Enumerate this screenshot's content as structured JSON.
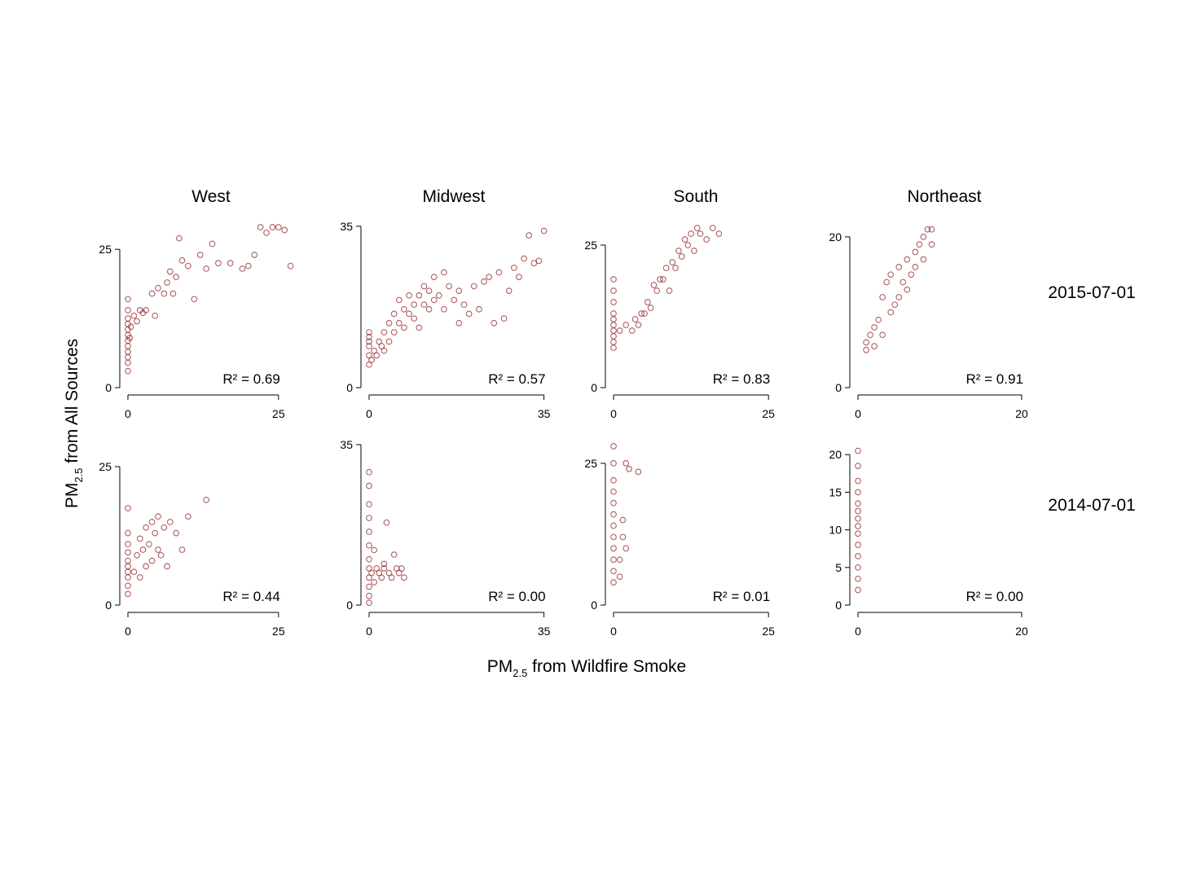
{
  "figure": {
    "columns": [
      "West",
      "Midwest",
      "South",
      "Northeast"
    ],
    "rows": [
      "2015-07-01",
      "2014-07-01"
    ],
    "x_label": [
      "PM",
      "2.5",
      " from Wildfire Smoke"
    ],
    "y_label": [
      "PM",
      "2.5",
      " from All Sources"
    ]
  },
  "chart_data": [
    {
      "type": "scatter",
      "color": "#8b1a1a",
      "annotation": "R² = 0.69",
      "x": [
        0,
        0,
        0,
        0,
        0,
        0,
        0,
        0,
        0,
        0,
        0,
        0,
        0.3,
        0.5,
        1,
        1.5,
        2,
        2.5,
        3,
        4,
        4.5,
        5,
        6,
        6.5,
        7,
        7.5,
        8,
        8.5,
        9,
        10,
        11,
        12,
        13,
        14,
        15,
        17,
        19,
        20,
        21,
        22,
        23,
        24,
        25,
        26,
        27
      ],
      "y": [
        3,
        4.5,
        5.5,
        6.5,
        7.5,
        8.5,
        9.5,
        10.5,
        11.5,
        12.5,
        14,
        16,
        9,
        11,
        13,
        12,
        14,
        13.5,
        14,
        17,
        13,
        18,
        17,
        19,
        21,
        17,
        20,
        27,
        23,
        22,
        16,
        24,
        21.5,
        26,
        22.5,
        22.5,
        21.5,
        22,
        24,
        29,
        28,
        29,
        29,
        28.5,
        22
      ],
      "xlim": [
        0,
        28
      ],
      "ylim": [
        0,
        29
      ],
      "xticks": [
        0,
        25
      ],
      "yticks": [
        0,
        25
      ]
    },
    {
      "type": "scatter",
      "color": "#8b1a1a",
      "annotation": "R² = 0.57",
      "x": [
        0,
        0,
        0,
        0,
        0,
        0,
        0.5,
        1,
        1.5,
        2,
        2.5,
        3,
        3,
        4,
        4,
        5,
        5,
        6,
        6,
        7,
        7,
        8,
        8,
        9,
        9,
        10,
        10,
        11,
        11,
        12,
        12,
        13,
        13,
        14,
        15,
        15,
        16,
        17,
        18,
        18,
        19,
        20,
        21,
        22,
        23,
        24,
        25,
        26,
        27,
        28,
        29,
        30,
        31,
        32,
        33,
        34,
        35
      ],
      "y": [
        5,
        7,
        9,
        10,
        11,
        12,
        6,
        8,
        7,
        10,
        9,
        8,
        12,
        10,
        14,
        12,
        16,
        14,
        19,
        13,
        17,
        16,
        20,
        18,
        15,
        20,
        13,
        18,
        22,
        21,
        17,
        19,
        24,
        20,
        17,
        25,
        22,
        19,
        14,
        21,
        18,
        16,
        22,
        17,
        23,
        24,
        14,
        25,
        15,
        21,
        26,
        24,
        28,
        33,
        27,
        27.5,
        34
      ],
      "xlim": [
        0,
        38
      ],
      "ylim": [
        0,
        35.5
      ],
      "xticks": [
        0,
        35
      ],
      "yticks": [
        0,
        35
      ]
    },
    {
      "type": "scatter",
      "color": "#8b1a1a",
      "annotation": "R² = 0.83",
      "x": [
        0,
        0,
        0,
        0,
        0,
        0,
        0,
        0,
        0,
        0,
        1,
        2,
        3,
        3.5,
        4,
        4.5,
        5,
        5.5,
        6,
        6.5,
        7,
        7.5,
        8,
        8.5,
        9,
        9.5,
        10,
        10.5,
        11,
        11.5,
        12,
        12.5,
        13,
        13.5,
        14,
        15,
        16,
        17
      ],
      "y": [
        7,
        8,
        9,
        10,
        11,
        12,
        13,
        15,
        17,
        19,
        10,
        11,
        10,
        12,
        11,
        13,
        13,
        15,
        14,
        18,
        17,
        19,
        19,
        21,
        17,
        22,
        21,
        24,
        23,
        26,
        25,
        27,
        24,
        28,
        27,
        26,
        28,
        27
      ],
      "xlim": [
        0,
        28
      ],
      "ylim": [
        0,
        28
      ],
      "xticks": [
        0,
        25
      ],
      "yticks": [
        0,
        25
      ]
    },
    {
      "type": "scatter",
      "color": "#8b1a1a",
      "annotation": "R² = 0.91",
      "x": [
        1,
        1,
        1.5,
        2,
        2,
        2.5,
        3,
        3,
        3.5,
        4,
        4,
        4.5,
        5,
        5,
        5.5,
        6,
        6,
        6.5,
        7,
        7,
        7.5,
        8,
        8,
        8.5,
        9,
        9
      ],
      "y": [
        5,
        6,
        7,
        5.5,
        8,
        9,
        7,
        12,
        14,
        10,
        15,
        11,
        16,
        12,
        14,
        13,
        17,
        15,
        16,
        18,
        19,
        20,
        17,
        21,
        19,
        21
      ],
      "xlim": [
        0,
        22
      ],
      "ylim": [
        0,
        21.5
      ],
      "xticks": [
        0,
        20
      ],
      "yticks": [
        0,
        20
      ]
    },
    {
      "type": "scatter",
      "color": "#8b1a1a",
      "annotation": "R² = 0.44",
      "x": [
        0,
        0,
        0,
        0,
        0,
        0,
        0,
        0,
        0,
        0,
        1,
        1.5,
        2,
        2,
        2.5,
        3,
        3,
        3.5,
        4,
        4,
        4.5,
        5,
        5,
        5.5,
        6,
        6.5,
        7,
        8,
        9,
        10,
        13
      ],
      "y": [
        2,
        3.5,
        5,
        6,
        7,
        8,
        9.5,
        11,
        13,
        17.5,
        6,
        9,
        5,
        12,
        10,
        7,
        14,
        11,
        8,
        15,
        13,
        10,
        16,
        9,
        14,
        7,
        15,
        13,
        10,
        16,
        19
      ],
      "xlim": [
        0,
        28
      ],
      "ylim": [
        0,
        25
      ],
      "xticks": [
        0,
        25
      ],
      "yticks": [
        0,
        25
      ]
    },
    {
      "type": "scatter",
      "color": "#8b1a1a",
      "annotation": "R² = 0.00",
      "x": [
        0,
        0,
        0,
        0,
        0,
        0,
        0,
        0,
        0,
        0,
        0,
        0,
        0.5,
        1,
        1,
        1.5,
        2,
        2.5,
        3,
        3,
        3.5,
        4,
        4.5,
        5,
        5.5,
        6,
        6.5,
        7
      ],
      "y": [
        0.5,
        2,
        4,
        6,
        8,
        10,
        13,
        16,
        19,
        22,
        26,
        29,
        7,
        5,
        12,
        8,
        7,
        6,
        8,
        9,
        18,
        7,
        6,
        11,
        8,
        7,
        8,
        6
      ],
      "xlim": [
        0,
        38
      ],
      "ylim": [
        0,
        35
      ],
      "xticks": [
        0,
        35
      ],
      "yticks": [
        0,
        35
      ]
    },
    {
      "type": "scatter",
      "color": "#8b1a1a",
      "annotation": "R² = 0.01",
      "x": [
        0,
        0,
        0,
        0,
        0,
        0,
        0,
        0,
        0,
        0,
        0,
        0,
        1,
        1,
        1.5,
        1.5,
        2,
        2,
        2.5,
        4
      ],
      "y": [
        4,
        6,
        8,
        10,
        12,
        14,
        16,
        18,
        20,
        22,
        25,
        28,
        5,
        8,
        12,
        15,
        10,
        25,
        24,
        23.5
      ],
      "xlim": [
        0,
        28
      ],
      "ylim": [
        0,
        28
      ],
      "xticks": [
        0,
        25
      ],
      "yticks": [
        0,
        25
      ]
    },
    {
      "type": "scatter",
      "color": "#8b1a1a",
      "annotation": "R² = 0.00",
      "x": [
        0,
        0,
        0,
        0,
        0,
        0,
        0,
        0,
        0,
        0,
        0,
        0,
        0,
        0
      ],
      "y": [
        2,
        3.5,
        5,
        6.5,
        8,
        9.5,
        10.5,
        11.5,
        12.5,
        13.5,
        15,
        16.5,
        18.5,
        20.5
      ],
      "xlim": [
        0,
        22
      ],
      "ylim": [
        0,
        21
      ],
      "xticks": [
        0,
        20
      ],
      "yticks": [
        0,
        5,
        10,
        15,
        20
      ]
    }
  ]
}
